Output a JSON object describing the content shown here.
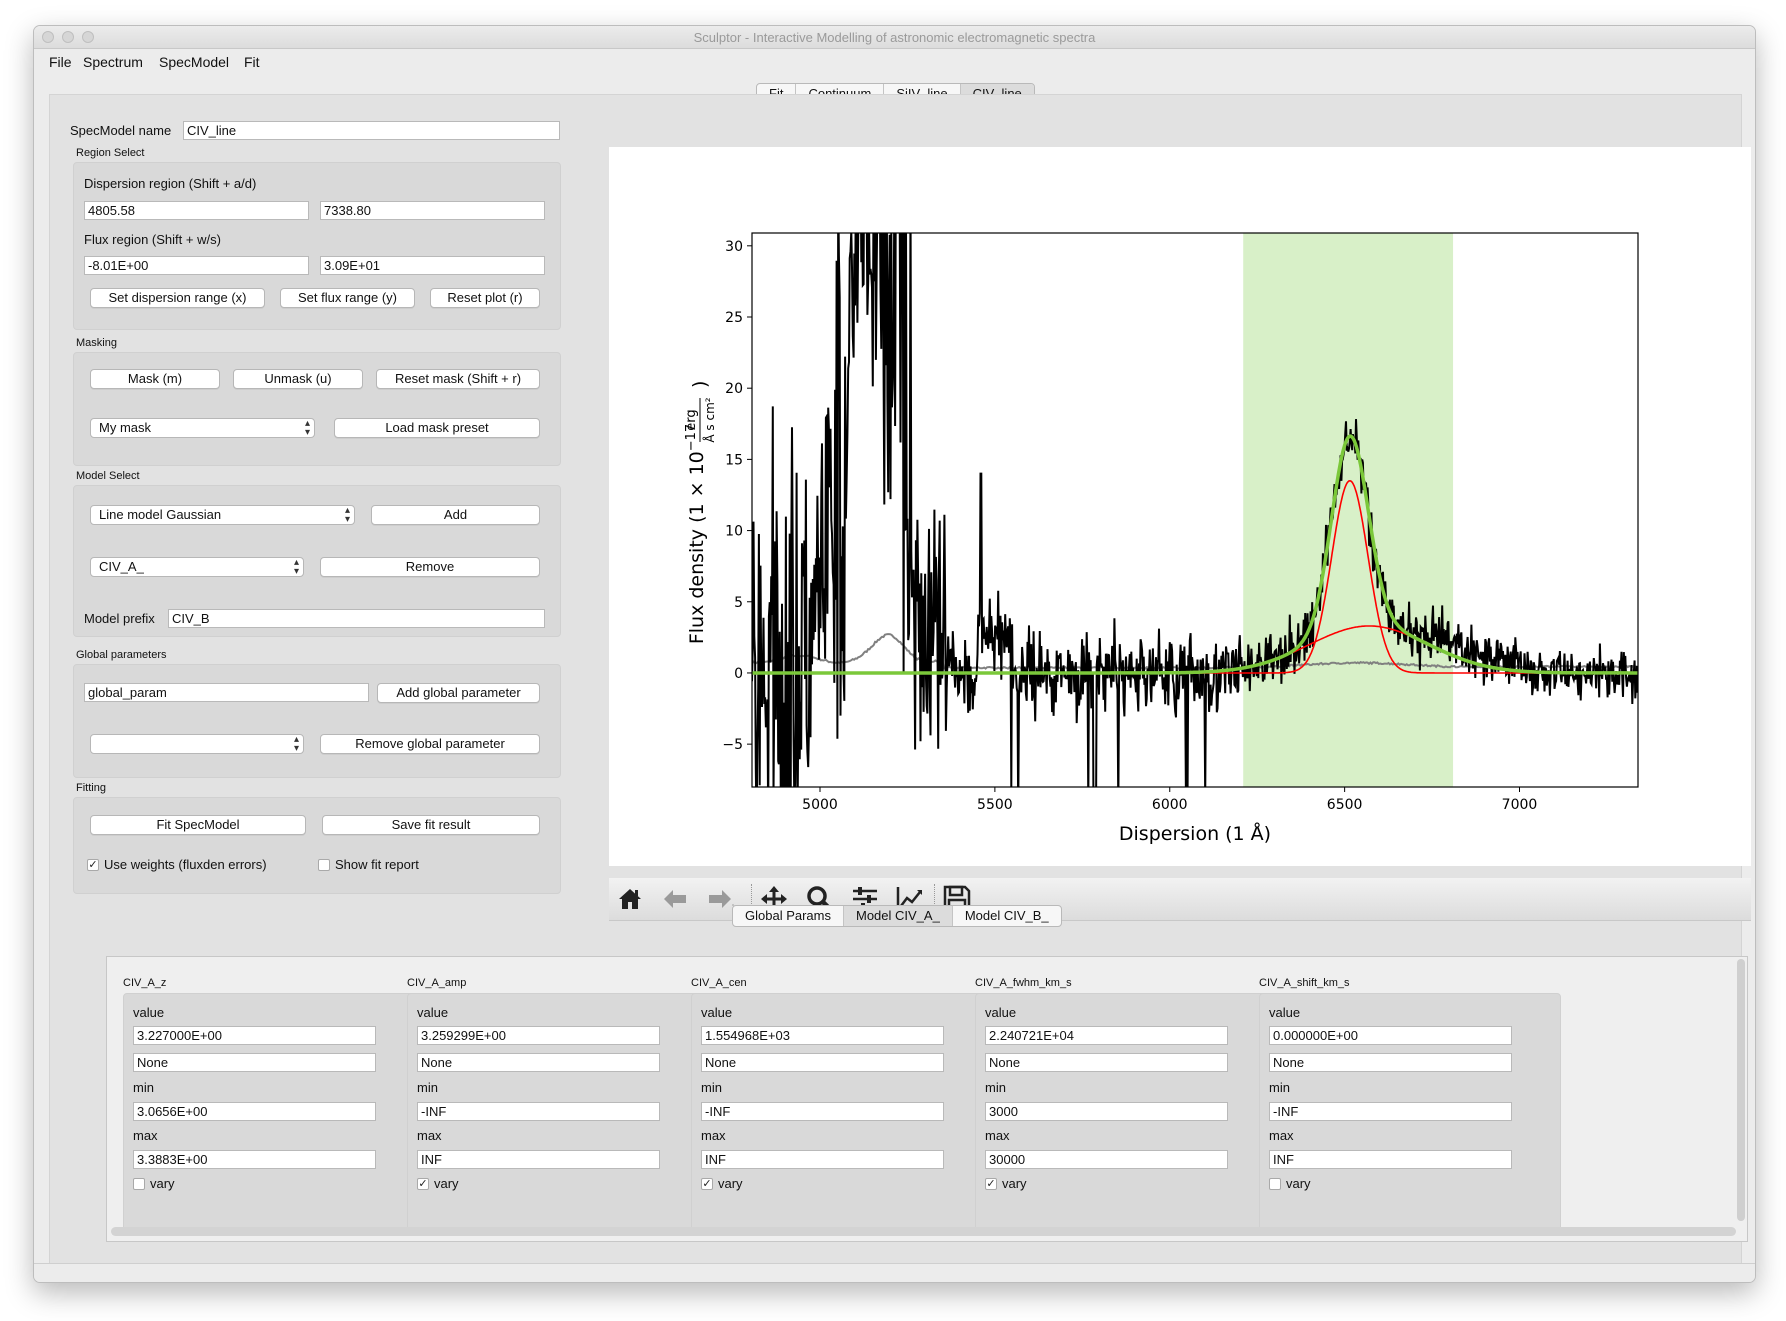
{
  "window": {
    "title": "Sculptor - Interactive Modelling of astronomic electromagnetic spectra"
  },
  "menu": [
    "File",
    "Spectrum",
    "SpecModel",
    "Fit"
  ],
  "top_tabs": [
    "Fit",
    "Continuum",
    "SiIV_line",
    "CIV_line"
  ],
  "specmodel": {
    "name_label": "SpecModel name",
    "name_value": "CIV_line",
    "region_select": {
      "title": "Region Select",
      "dispersion_label": "Dispersion region (Shift + a/d)",
      "disp_min": "4805.58",
      "disp_max": "7338.80",
      "flux_label": "Flux region (Shift + w/s)",
      "flux_min": "-8.01E+00",
      "flux_max": "3.09E+01",
      "btn_disp": "Set dispersion range (x)",
      "btn_flux": "Set flux range (y)",
      "btn_reset": "Reset plot (r)"
    },
    "masking": {
      "title": "Masking",
      "btn_mask": "Mask (m)",
      "btn_unmask": "Unmask (u)",
      "btn_reset": "Reset mask (Shift + r)",
      "preset_select": "My mask",
      "btn_load": "Load mask preset"
    },
    "model_select": {
      "title": "Model Select",
      "model_select": "Line model Gaussian",
      "btn_add": "Add",
      "component_select": "CIV_A_",
      "btn_remove": "Remove",
      "prefix_label": "Model prefix",
      "prefix_value": "CIV_B"
    },
    "global_params": {
      "title": "Global parameters",
      "input_value": "global_param",
      "btn_add": "Add global parameter",
      "select_value": "",
      "btn_remove": "Remove global parameter"
    },
    "fitting": {
      "title": "Fitting",
      "btn_fit": "Fit SpecModel",
      "btn_save": "Save fit result",
      "use_weights": "Use weights (fluxden errors)",
      "use_weights_checked": true,
      "show_report": "Show fit report",
      "show_report_checked": false
    }
  },
  "toolbar_icons": [
    "home-icon",
    "back-arrow-icon",
    "forward-arrow-icon",
    "pan-icon",
    "zoom-icon",
    "subplots-icon",
    "axes-edit-icon",
    "save-icon"
  ],
  "chart_data": {
    "type": "line",
    "xlabel": "Dispersion (1 Å)",
    "ylabel": "Flux density (1 × 10",
    "ylabel_exp": "−17",
    "ylabel_unit_num": "erg",
    "ylabel_unit_den": "Å s cm²",
    "xlim": [
      4805.58,
      7338.8
    ],
    "ylim": [
      -8.01,
      30.9
    ],
    "xticks": [
      5000,
      5500,
      6000,
      6500,
      7000
    ],
    "yticks": [
      -5,
      0,
      5,
      10,
      15,
      20,
      25,
      30
    ],
    "highlight_region": [
      6210,
      6810
    ],
    "colors": {
      "flux": "#000000",
      "error": "#808080",
      "model_total": "#7bc83a",
      "components": "#ff0000",
      "region": "#d8f0c8"
    },
    "components": [
      {
        "amp": 13.5,
        "cen": 6515,
        "sigma": 52
      },
      {
        "amp": 3.3,
        "cen": 6570,
        "sigma": 170
      }
    ]
  },
  "bottom_tabs": [
    "Global Params",
    "Model CIV_A_",
    "Model CIV_B_"
  ],
  "params": [
    {
      "name": "CIV_A_z",
      "value_label": "value",
      "value": "3.227000E+00",
      "expr": "None",
      "min_label": "min",
      "min": "3.0656E+00",
      "max_label": "max",
      "max": "3.3883E+00",
      "vary_label": "vary",
      "vary": false
    },
    {
      "name": "CIV_A_amp",
      "value_label": "value",
      "value": "3.259299E+00",
      "expr": "None",
      "min_label": "min",
      "min": "-INF",
      "max_label": "max",
      "max": "INF",
      "vary_label": "vary",
      "vary": true
    },
    {
      "name": "CIV_A_cen",
      "value_label": "value",
      "value": "1.554968E+03",
      "expr": "None",
      "min_label": "min",
      "min": "-INF",
      "max_label": "max",
      "max": "INF",
      "vary_label": "vary",
      "vary": true
    },
    {
      "name": "CIV_A_fwhm_km_s",
      "value_label": "value",
      "value": "2.240721E+04",
      "expr": "None",
      "min_label": "min",
      "min": "3000",
      "max_label": "max",
      "max": "30000",
      "vary_label": "vary",
      "vary": true
    },
    {
      "name": "CIV_A_shift_km_s",
      "value_label": "value",
      "value": "0.000000E+00",
      "expr": "None",
      "min_label": "min",
      "min": "-INF",
      "max_label": "max",
      "max": "INF",
      "vary_label": "vary",
      "vary": false
    }
  ]
}
